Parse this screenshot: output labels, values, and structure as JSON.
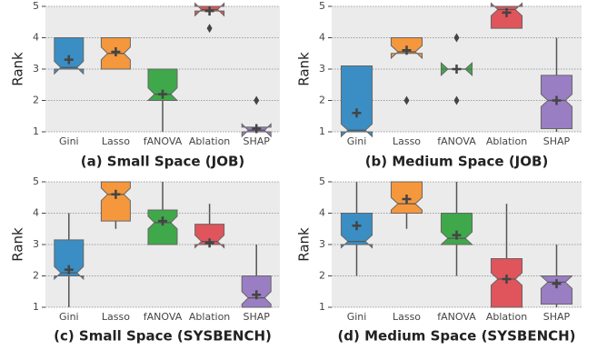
{
  "chart_data": [
    {
      "type": "box",
      "title": "(a) Small Space (JOB)",
      "ylabel": "Rank",
      "ylim": [
        1,
        5
      ],
      "yticks": [
        1,
        2,
        3,
        4,
        5
      ],
      "grid": true,
      "categories": [
        "Gini",
        "Lasso",
        "fANOVA",
        "Ablation",
        "SHAP"
      ],
      "colors": [
        "#3a8ec4",
        "#f5973c",
        "#3fa84a",
        "#e0545b",
        "#9a7ec3"
      ],
      "boxes": [
        {
          "q1": 3,
          "median": 3.05,
          "q3": 4,
          "whislo": 3,
          "whishi": 4,
          "mean": 3.3
        },
        {
          "q1": 3,
          "median": 3.5,
          "q3": 4,
          "whislo": 3,
          "whishi": 4,
          "mean": 3.55
        },
        {
          "q1": 2,
          "median": 2.2,
          "q3": 3,
          "whislo": 1,
          "whishi": 3,
          "mean": 2.2
        },
        {
          "q1": 4.85,
          "median": 4.9,
          "q3": 5,
          "whislo": 4.8,
          "whishi": 5,
          "mean": 4.85,
          "outliers": [
            4.3
          ]
        },
        {
          "q1": 1,
          "median": 1.05,
          "q3": 1.15,
          "whislo": 1,
          "whishi": 1.15,
          "mean": 1.1,
          "outliers": [
            2
          ]
        }
      ]
    },
    {
      "type": "box",
      "title": "(b) Medium Space (JOB)",
      "ylabel": "Rank",
      "ylim": [
        1,
        5
      ],
      "yticks": [
        1,
        2,
        3,
        4,
        5
      ],
      "grid": true,
      "categories": [
        "Gini",
        "Lasso",
        "fANOVA",
        "Ablation",
        "SHAP"
      ],
      "colors": [
        "#3a8ec4",
        "#f5973c",
        "#3fa84a",
        "#e0545b",
        "#9a7ec3"
      ],
      "boxes": [
        {
          "q1": 1,
          "median": 1.05,
          "q3": 3.1,
          "whislo": 1,
          "whishi": 3.1,
          "mean": 1.6
        },
        {
          "q1": 3.5,
          "median": 3.55,
          "q3": 4,
          "whislo": 3.5,
          "whishi": 4,
          "mean": 3.6,
          "outliers": [
            2
          ]
        },
        {
          "q1": 3,
          "median": 3,
          "q3": 3,
          "whislo": 3,
          "whishi": 3,
          "mean": 3,
          "outliers": [
            2,
            4
          ]
        },
        {
          "q1": 4.3,
          "median": 4.9,
          "q3": 5,
          "whislo": 4.3,
          "whishi": 5,
          "mean": 4.8
        },
        {
          "q1": 1.1,
          "median": 2,
          "q3": 2.8,
          "whislo": 1,
          "whishi": 4,
          "mean": 2
        }
      ]
    },
    {
      "type": "box",
      "title": "(c) Small Space (SYSBENCH)",
      "ylabel": "Rank",
      "ylim": [
        1,
        5
      ],
      "yticks": [
        1,
        2,
        3,
        4,
        5
      ],
      "grid": true,
      "categories": [
        "Gini",
        "Lasso",
        "fANOVA",
        "Ablation",
        "SHAP"
      ],
      "colors": [
        "#3a8ec4",
        "#f5973c",
        "#3fa84a",
        "#e0545b",
        "#9a7ec3"
      ],
      "boxes": [
        {
          "q1": 2,
          "median": 2.1,
          "q3": 3.15,
          "whislo": 1,
          "whishi": 4,
          "mean": 2.2
        },
        {
          "q1": 3.75,
          "median": 4.6,
          "q3": 5,
          "whislo": 3.5,
          "whishi": 5,
          "mean": 4.6
        },
        {
          "q1": 3,
          "median": 3.7,
          "q3": 4.1,
          "whislo": 3,
          "whishi": 5,
          "mean": 3.75
        },
        {
          "q1": 3,
          "median": 3.1,
          "q3": 3.65,
          "whislo": 3,
          "whishi": 4.3,
          "mean": 3.05
        },
        {
          "q1": 1,
          "median": 1.3,
          "q3": 2,
          "whislo": 1,
          "whishi": 3,
          "mean": 1.4
        }
      ]
    },
    {
      "type": "box",
      "title": "(d) Medium Space (SYSBENCH)",
      "ylabel": "Rank",
      "ylim": [
        1,
        5
      ],
      "yticks": [
        1,
        2,
        3,
        4,
        5
      ],
      "grid": true,
      "categories": [
        "Gini",
        "Lasso",
        "fANOVA",
        "Ablation",
        "SHAP"
      ],
      "colors": [
        "#3a8ec4",
        "#f5973c",
        "#3fa84a",
        "#e0545b",
        "#9a7ec3"
      ],
      "boxes": [
        {
          "q1": 3,
          "median": 3.1,
          "q3": 4,
          "whislo": 2,
          "whishi": 5,
          "mean": 3.6
        },
        {
          "q1": 4,
          "median": 4.3,
          "q3": 5,
          "whislo": 3.5,
          "whishi": 5,
          "mean": 4.45
        },
        {
          "q1": 3,
          "median": 3.2,
          "q3": 4,
          "whislo": 2,
          "whishi": 5,
          "mean": 3.3
        },
        {
          "q1": 1,
          "median": 1.9,
          "q3": 2.55,
          "whislo": 1,
          "whishi": 4.3,
          "mean": 1.9
        },
        {
          "q1": 1.1,
          "median": 1.8,
          "q3": 2,
          "whislo": 1,
          "whishi": 3,
          "mean": 1.75
        }
      ]
    }
  ]
}
